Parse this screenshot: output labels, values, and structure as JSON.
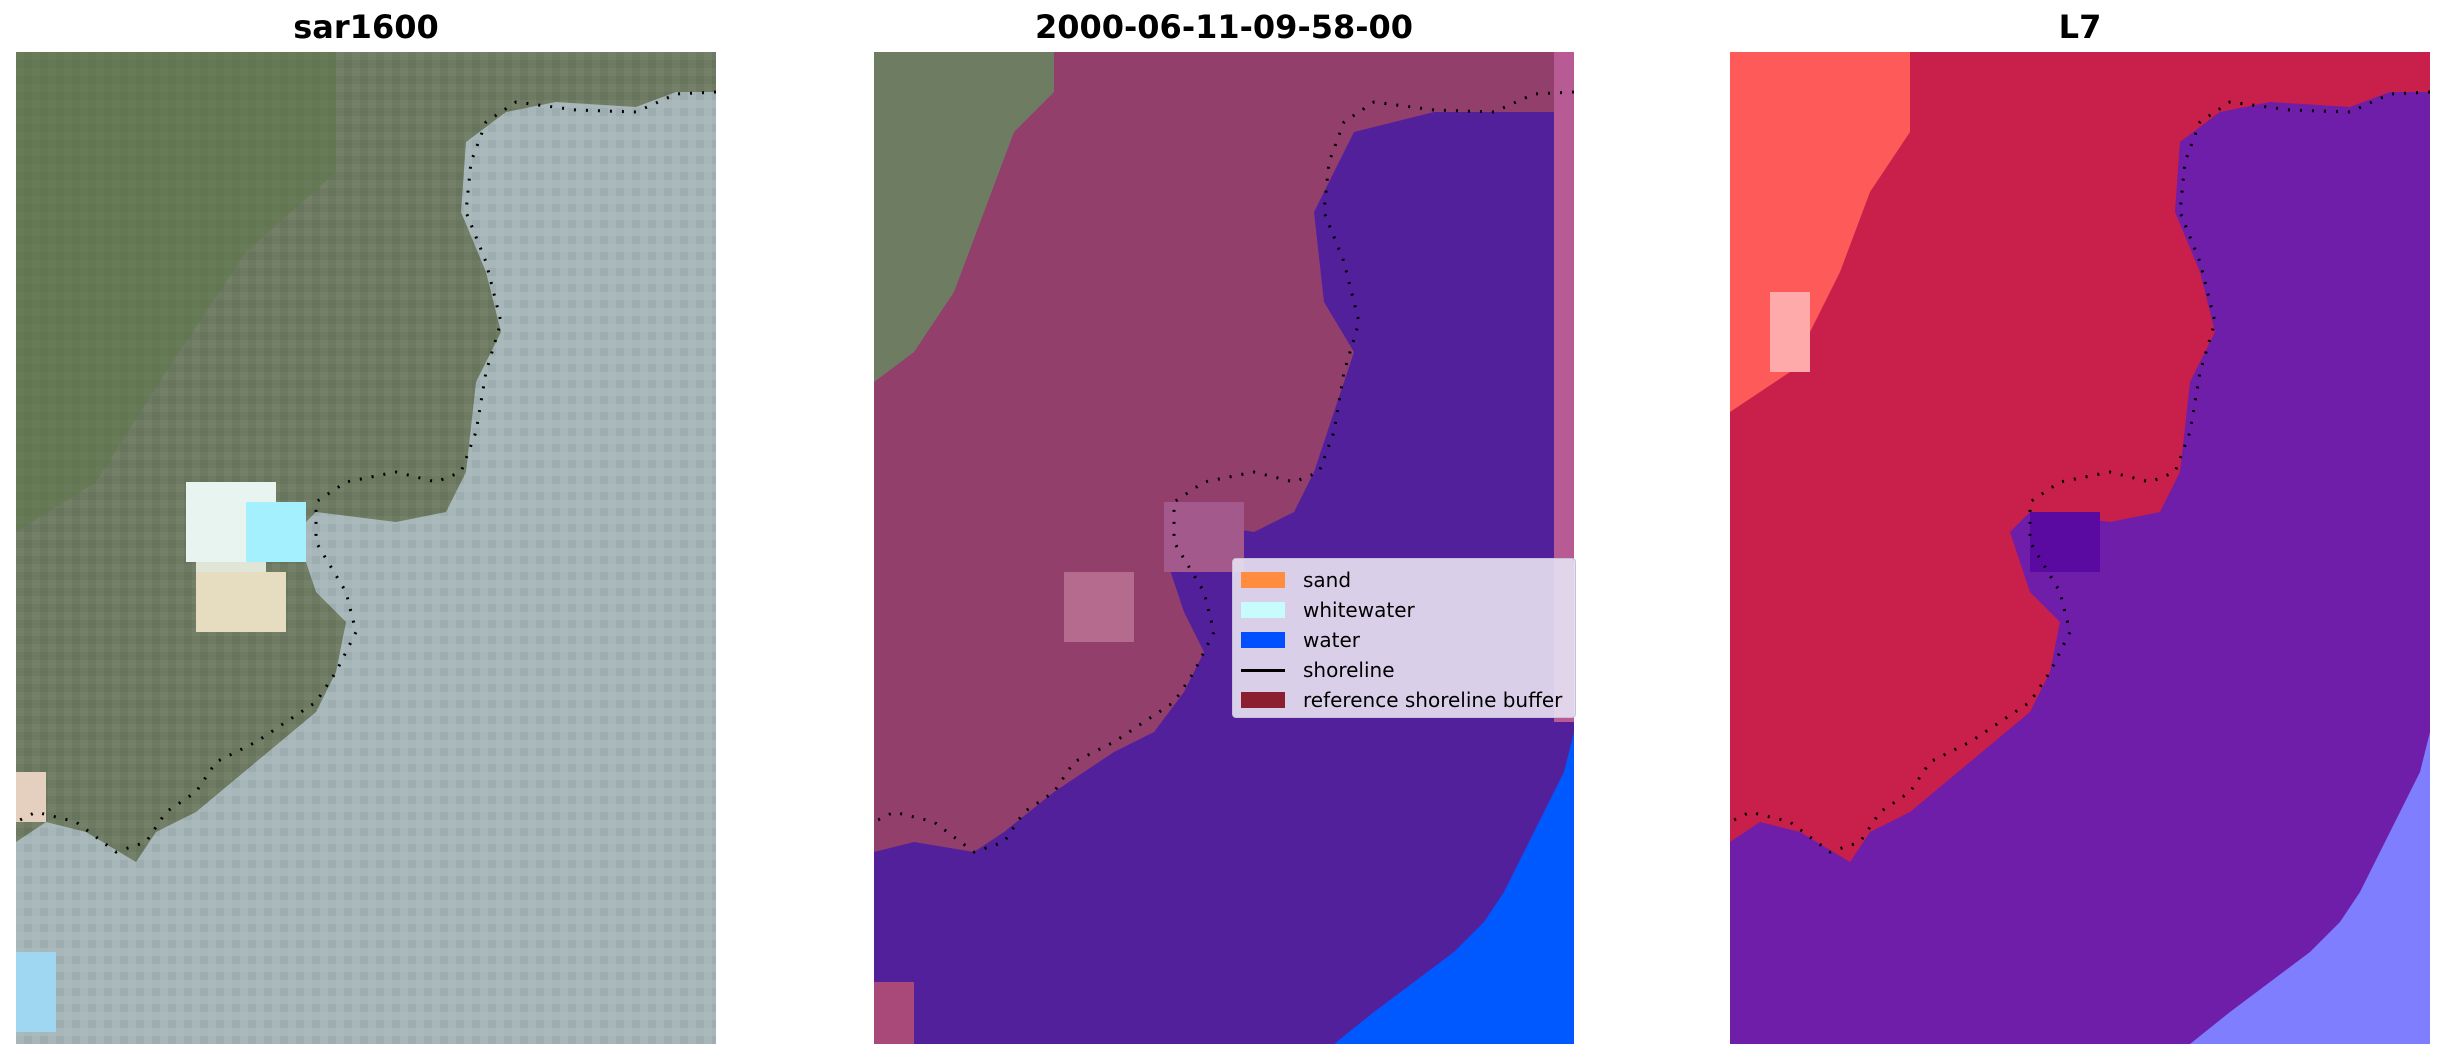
{
  "panels": [
    {
      "title": "sar1600"
    },
    {
      "title": "2000-06-11-09-58-00"
    },
    {
      "title": "L7"
    }
  ],
  "legend": {
    "items": [
      {
        "label": "sand",
        "color": "#ff8c3f",
        "kind": "patch"
      },
      {
        "label": "whitewater",
        "color": "#c8fcfc",
        "kind": "patch"
      },
      {
        "label": "water",
        "color": "#0050ff",
        "kind": "patch"
      },
      {
        "label": "shoreline",
        "color": "#000000",
        "kind": "line"
      },
      {
        "label": "reference shoreline buffer",
        "color": "#8b1f2f",
        "kind": "patch"
      }
    ]
  },
  "colors": {
    "land_green": "#6f7f63",
    "sea_grey_blue": "#a6b4b8",
    "classified_land": "#923f6c",
    "classified_water": "#52209b",
    "water_blue": "#0058ff",
    "l7_red": "#c8204a",
    "l7_light_red": "#ff5a5a",
    "l7_purple": "#6e1ea8",
    "l7_light_blue": "#7e7eff"
  }
}
